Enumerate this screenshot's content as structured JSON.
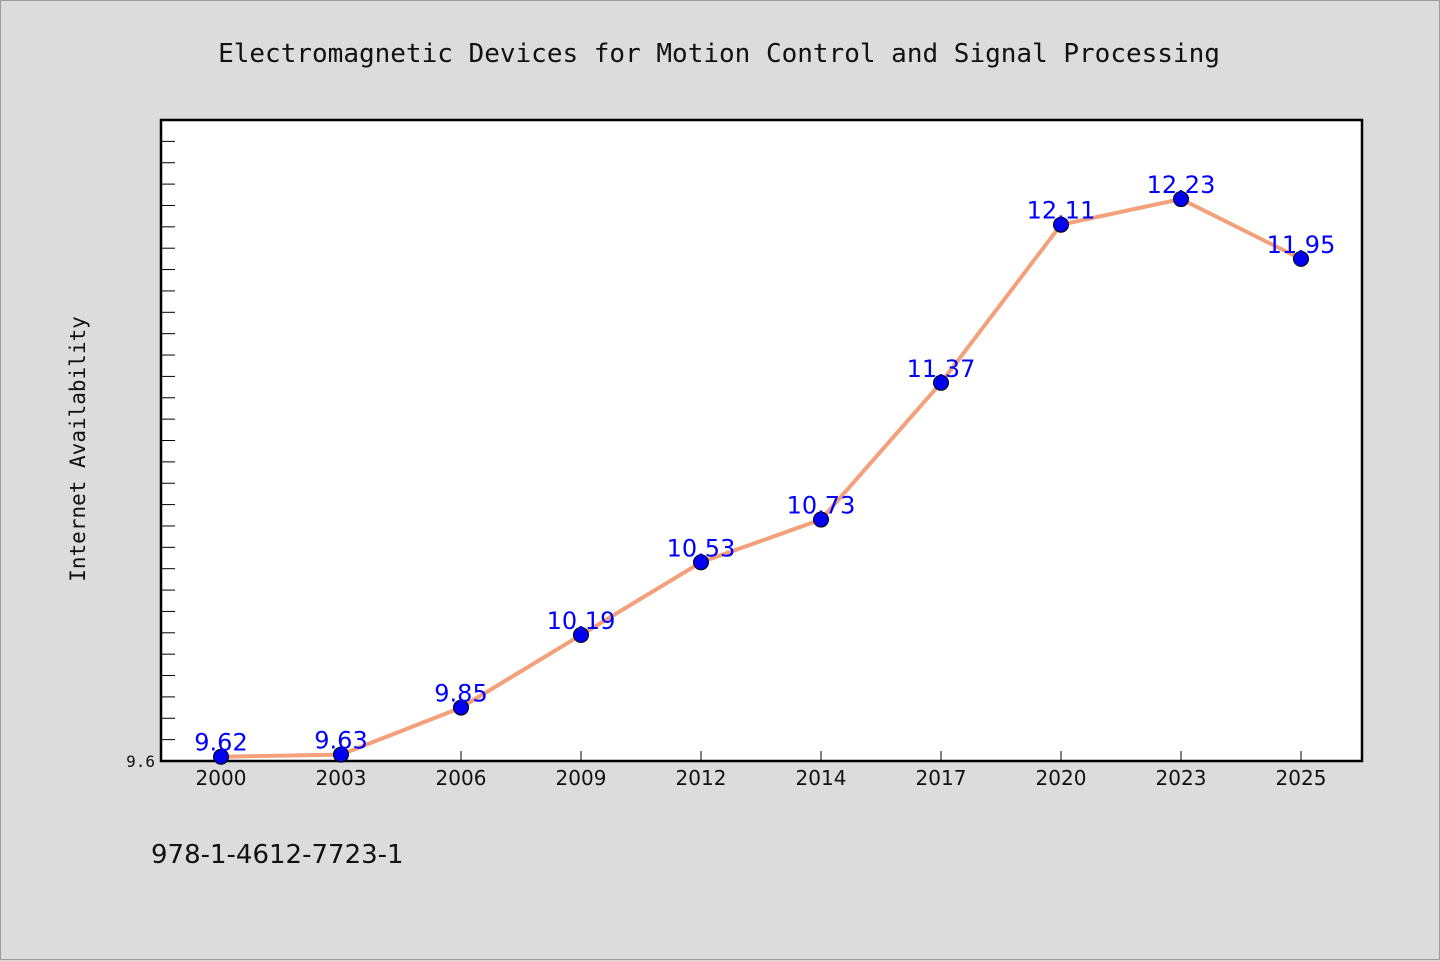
{
  "chart_data": {
    "type": "line",
    "title": "Electromagnetic Devices for Motion Control and Signal Processing",
    "xlabel": "",
    "ylabel": "Internet Availability",
    "categories": [
      "2000",
      "2003",
      "2006",
      "2009",
      "2012",
      "2014",
      "2017",
      "2020",
      "2023",
      "2025"
    ],
    "series": [
      {
        "values": [
          9.62,
          9.63,
          9.85,
          10.19,
          10.53,
          10.73,
          11.37,
          12.11,
          12.23,
          11.95
        ],
        "line_color": "#f4a07a",
        "marker_color": "#0000ee",
        "label_color": "#0000ff"
      }
    ],
    "data_labels": [
      "9.62",
      "9.63",
      "9.85",
      "10.19",
      "10.53",
      "10.73",
      "11.37",
      "12.11",
      "12.23",
      "11.95"
    ],
    "ylim": [
      9.6,
      12.6
    ],
    "yticks_labeled": [
      "9.6"
    ],
    "grid": false,
    "legend": "none"
  },
  "footer": {
    "isbn": "978-1-4612-7723-1"
  }
}
